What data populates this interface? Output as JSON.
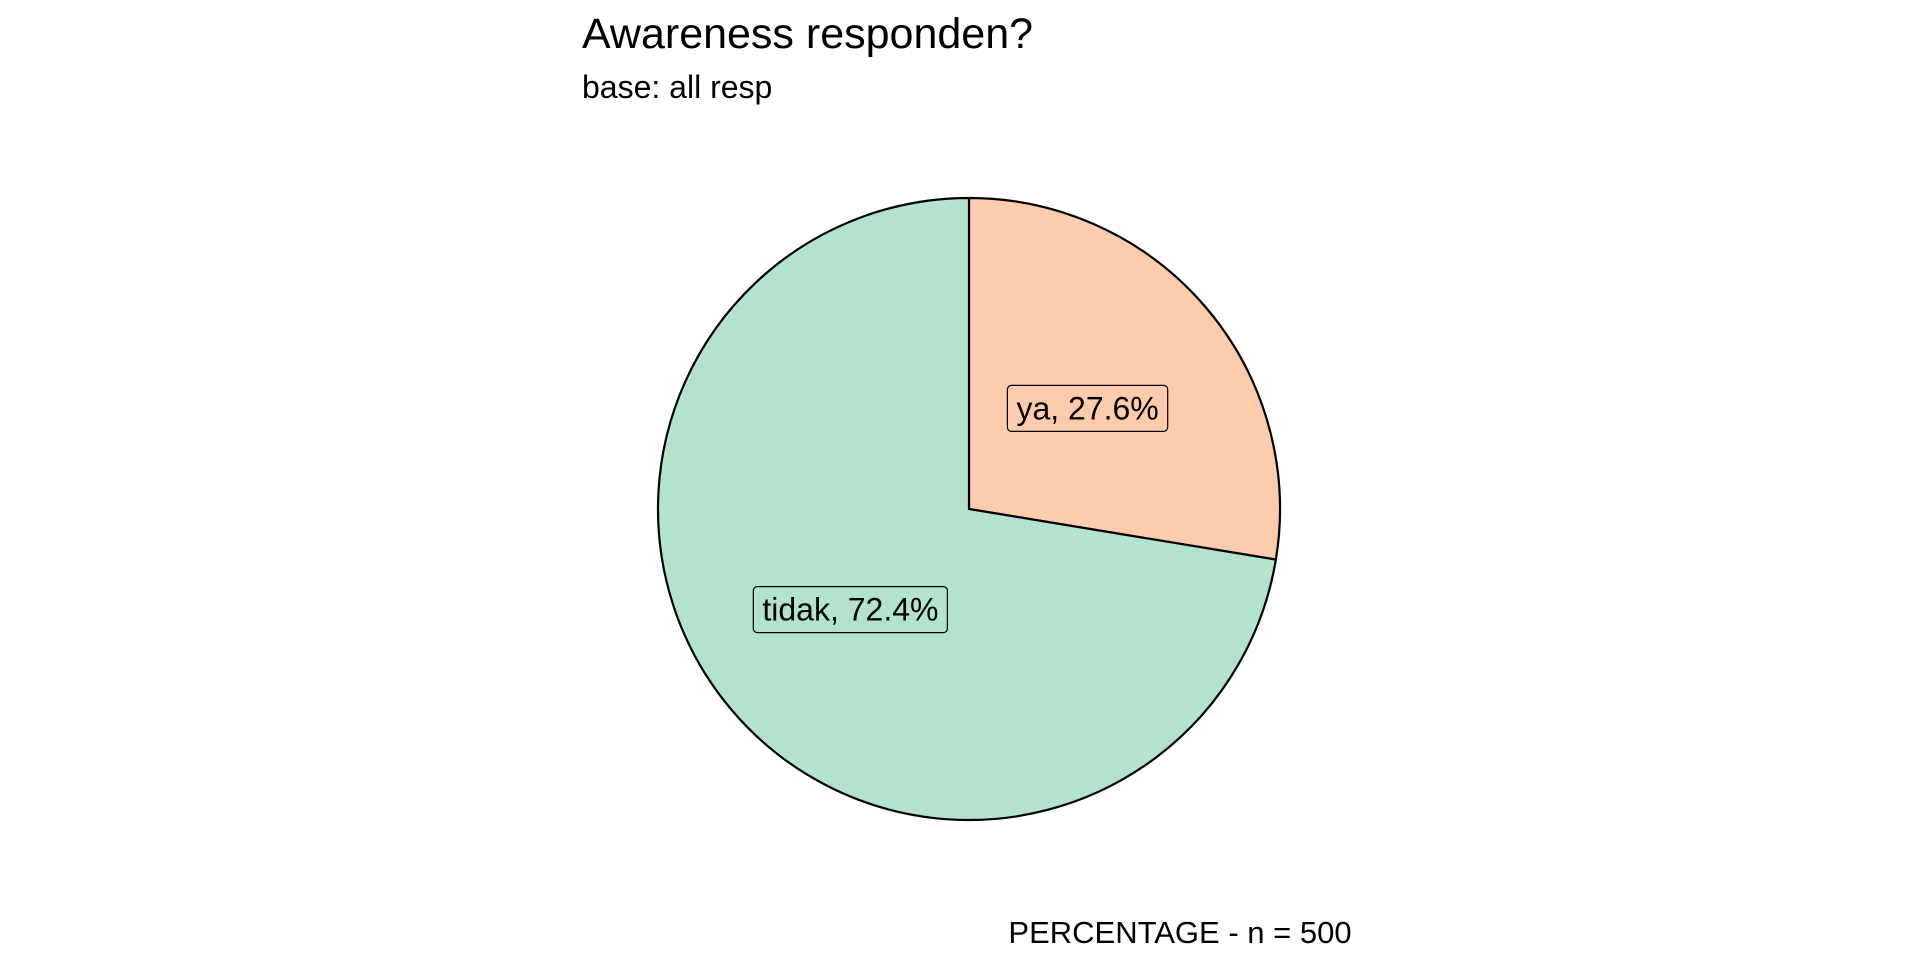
{
  "chart_data": {
    "type": "pie",
    "title": "Awareness responden?",
    "subtitle": "base: all resp",
    "caption": "PERCENTAGE - n = 500",
    "slices": [
      {
        "label": "ya",
        "value": 27.6,
        "display": "ya, 27.6%",
        "color": "#FDCCAC"
      },
      {
        "label": "tidak",
        "value": 72.4,
        "display": "tidak, 72.4%",
        "color": "#B3E2CD"
      }
    ],
    "start": "12 o'clock",
    "direction": "clockwise",
    "legend": "none",
    "outline_color": "#000000"
  }
}
